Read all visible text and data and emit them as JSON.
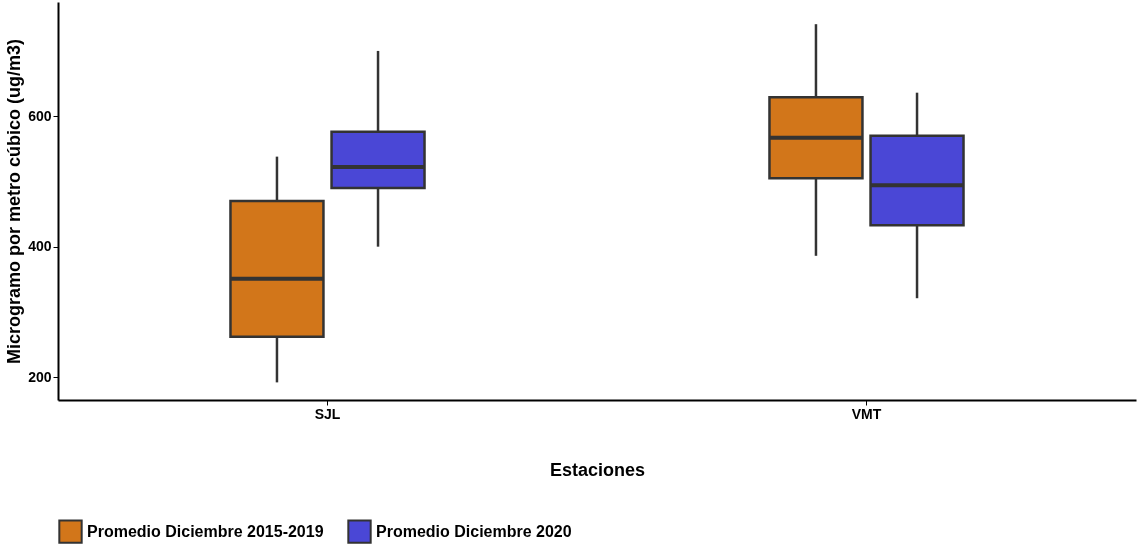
{
  "chart_data": {
    "type": "box",
    "xlabel": "Estaciones",
    "ylabel": "Microgramo por metro cúbico (ug/m3)",
    "categories": [
      "SJL",
      "VMT"
    ],
    "ylim": [
      165,
      775
    ],
    "yticks": [
      200,
      400,
      600
    ],
    "grid": false,
    "legend": "bottom",
    "series": [
      {
        "name": "Promedio Diciembre 2015-2019",
        "color": "#d2761a",
        "boxes": [
          {
            "low": 192,
            "q1": 262,
            "median": 351,
            "q3": 470,
            "high": 538
          },
          {
            "low": 386,
            "q1": 505,
            "median": 567,
            "q3": 629,
            "high": 741
          }
        ]
      },
      {
        "name": "Promedio Diciembre 2020",
        "color": "#4a47d6",
        "boxes": [
          {
            "low": 400,
            "q1": 490,
            "median": 522,
            "q3": 576,
            "high": 700
          },
          {
            "low": 321,
            "q1": 433,
            "median": 494,
            "q3": 570,
            "high": 636
          }
        ]
      }
    ]
  }
}
